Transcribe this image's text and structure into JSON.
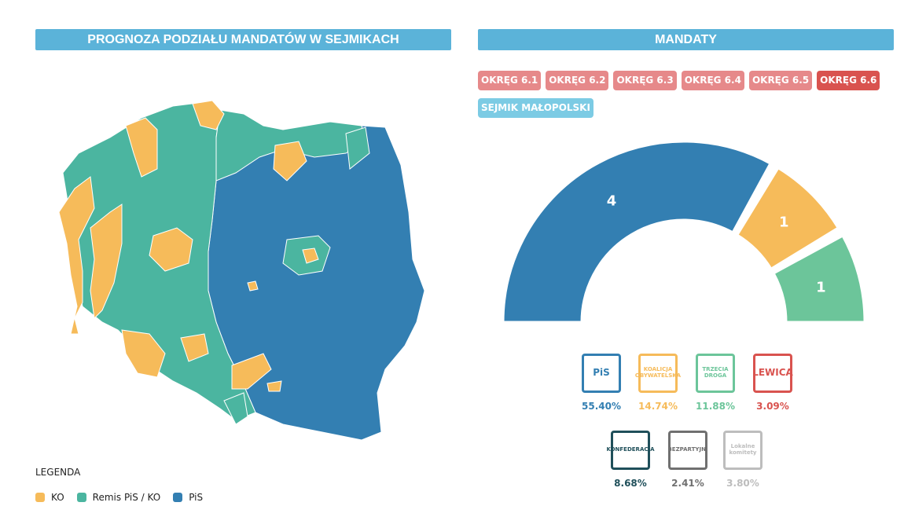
{
  "left": {
    "title": "PROGNOZA PODZIAŁU MANDATÓW W SEJMIKACH",
    "legend_title": "LEGENDA",
    "legend": [
      {
        "label": "KO",
        "color": "#f6bb5a"
      },
      {
        "label": "Remis PiS / KO",
        "color": "#4bb5a0"
      },
      {
        "label": "PiS",
        "color": "#337fb2"
      }
    ]
  },
  "right": {
    "title": "MANDATY",
    "tabs": [
      {
        "label": "OKRĘG 6.1",
        "state": "inactive"
      },
      {
        "label": "OKRĘG 6.2",
        "state": "inactive"
      },
      {
        "label": "OKRĘG 6.3",
        "state": "inactive"
      },
      {
        "label": "OKRĘG 6.4",
        "state": "inactive"
      },
      {
        "label": "OKRĘG 6.5",
        "state": "inactive"
      },
      {
        "label": "OKRĘG 6.6",
        "state": "active"
      },
      {
        "label": "SEJMIK MAŁOPOLSKI",
        "state": "blue"
      }
    ],
    "seats": [
      {
        "party": "PiS",
        "value": "4",
        "color": "#337fb2"
      },
      {
        "party": "KO",
        "value": "1",
        "color": "#f6bb5a"
      },
      {
        "party": "Trzecia Droga",
        "value": "1",
        "color": "#6cc59a"
      }
    ],
    "parties": [
      {
        "name": "PiS",
        "pct": "55.40%",
        "color": "#337fb2",
        "logo_text": "PiS"
      },
      {
        "name": "KO",
        "pct": "14.74%",
        "color": "#f6bb5a",
        "logo_text": "KOALICJA OBYWATELSKA"
      },
      {
        "name": "Trzecia Droga",
        "pct": "11.88%",
        "color": "#6cc59a",
        "logo_text": "TRZECIA DROGA"
      },
      {
        "name": "Lewica",
        "pct": "3.09%",
        "color": "#d9534f",
        "logo_text": "LEWICA"
      },
      {
        "name": "Konfederacja",
        "pct": "8.68%",
        "color": "#1f4f5a",
        "logo_text": "KONFEDERACJA"
      },
      {
        "name": "Bezpartyjni",
        "pct": "2.41%",
        "color": "#707070",
        "logo_text": "BEZPARTYJNI"
      },
      {
        "name": "Lokalne komitety",
        "pct": "3.80%",
        "color": "#bdbdbd",
        "logo_text": "Lokalne komitety"
      }
    ]
  }
}
